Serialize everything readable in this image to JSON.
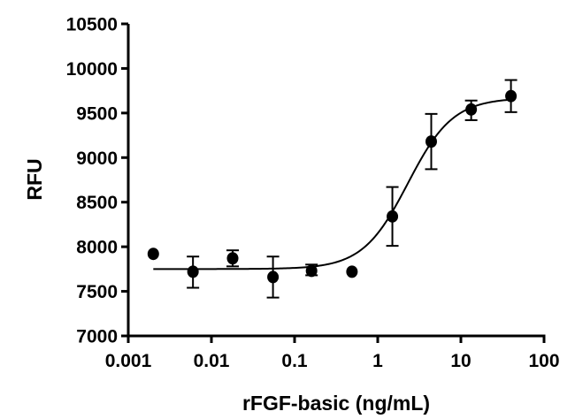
{
  "chart_data": {
    "type": "scatter",
    "title": "",
    "xlabel": "rFGF-basic (ng/mL)",
    "ylabel": "RFU",
    "xscale": "log",
    "xlim": [
      0.001,
      100
    ],
    "ylim": [
      7000,
      10500
    ],
    "x_ticks": [
      0.001,
      0.01,
      0.1,
      1,
      10,
      100
    ],
    "x_tick_labels": [
      "0.001",
      "0.01",
      "0.1",
      "1",
      "10",
      "100"
    ],
    "y_ticks": [
      7000,
      7500,
      8000,
      8500,
      9000,
      9500,
      10000,
      10500
    ],
    "y_tick_labels": [
      "7000",
      "7500",
      "8000",
      "8500",
      "9000",
      "9500",
      "10000",
      "10500"
    ],
    "grid": false,
    "legend": null,
    "series": [
      {
        "name": "rFGF-basic",
        "marker": "circle",
        "color": "#000000",
        "points": [
          {
            "x": 0.002,
            "y": 7920,
            "err_low": null,
            "err_high": null
          },
          {
            "x": 0.006,
            "y": 7720,
            "err_low": 7540,
            "err_high": 7890
          },
          {
            "x": 0.018,
            "y": 7870,
            "err_low": 7780,
            "err_high": 7960
          },
          {
            "x": 0.055,
            "y": 7660,
            "err_low": 7430,
            "err_high": 7890
          },
          {
            "x": 0.16,
            "y": 7730,
            "err_low": 7680,
            "err_high": 7800
          },
          {
            "x": 0.49,
            "y": 7720,
            "err_low": null,
            "err_high": null
          },
          {
            "x": 1.5,
            "y": 8340,
            "err_low": 8010,
            "err_high": 8670
          },
          {
            "x": 4.4,
            "y": 9180,
            "err_low": 8870,
            "err_high": 9490
          },
          {
            "x": 13.3,
            "y": 9540,
            "err_low": 9420,
            "err_high": 9640
          },
          {
            "x": 40,
            "y": 9690,
            "err_low": 9510,
            "err_high": 9870
          }
        ]
      }
    ],
    "fit_curve": {
      "model": "4PL",
      "bottom": 7750,
      "top": 9670,
      "ec50": 2.3,
      "hill": 1.6,
      "x_range": [
        0.002,
        40
      ]
    }
  }
}
